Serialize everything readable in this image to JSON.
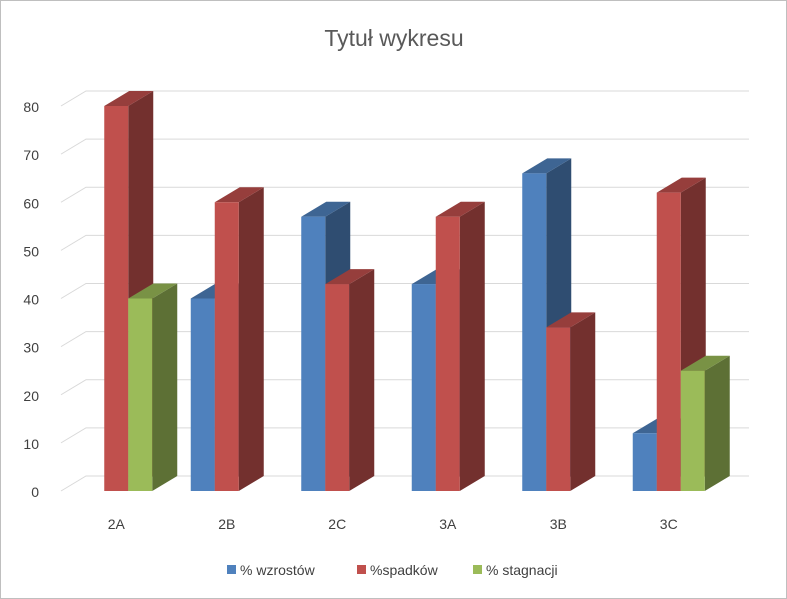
{
  "chart_data": {
    "type": "bar",
    "subtype": "3d-clustered-column",
    "title": "Tytuł wykresu",
    "xlabel": "",
    "ylabel": "",
    "categories": [
      "2A",
      "2B",
      "2C",
      "3A",
      "3B",
      "3C"
    ],
    "y_ticks": [
      "0",
      "10",
      "20",
      "30",
      "40",
      "50",
      "60",
      "70",
      "80"
    ],
    "ylim": [
      0,
      80
    ],
    "grid": true,
    "legend_position": "bottom",
    "series": [
      {
        "name": "% wzrostów",
        "color": "#4f81bd",
        "values": [
          0,
          40,
          57,
          43,
          66,
          12
        ]
      },
      {
        "name": "%spadków",
        "color": "#c0504d",
        "values": [
          80,
          60,
          43,
          57,
          34,
          62
        ]
      },
      {
        "name": "% stagnacji",
        "color": "#9bbb59",
        "values": [
          40,
          0,
          0,
          0,
          0,
          25
        ]
      }
    ]
  }
}
